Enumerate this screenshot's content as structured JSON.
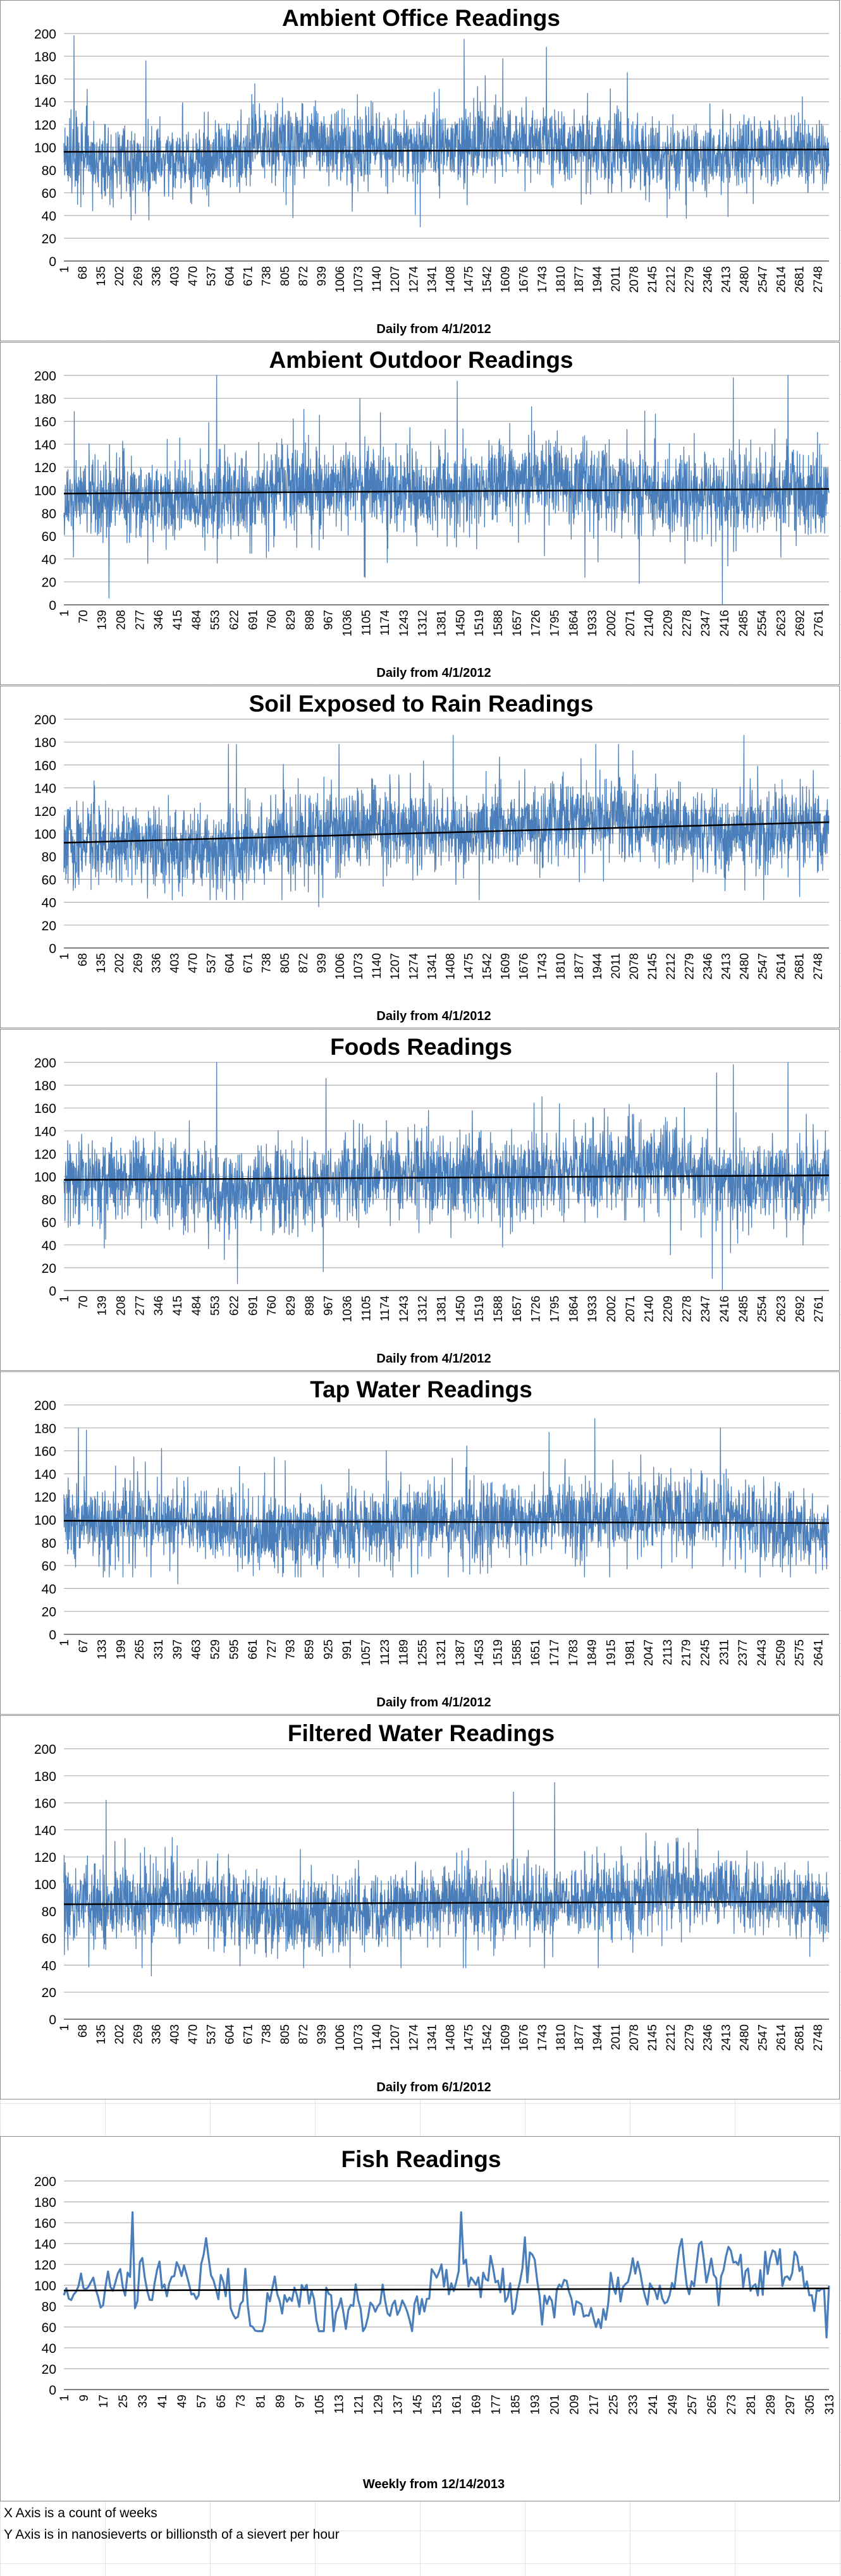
{
  "colors": {
    "series": "#4a7ebb",
    "trend": "#000000",
    "grid": "#b0b0b0",
    "axis": "#808080"
  },
  "chart_data": [
    {
      "type": "line",
      "title": "Ambient Office Readings",
      "xlabel": "Daily from 4/1/2012",
      "ylabel": "",
      "ylim": [
        0,
        200
      ],
      "yticks": [
        0,
        20,
        40,
        60,
        80,
        100,
        120,
        140,
        160,
        180,
        200
      ],
      "x_tick_labels": [
        "1",
        "68",
        "135",
        "202",
        "269",
        "336",
        "403",
        "470",
        "537",
        "604",
        "671",
        "738",
        "805",
        "872",
        "939",
        "1006",
        "1073",
        "1140",
        "1207",
        "1274",
        "1341",
        "1408",
        "1475",
        "1542",
        "1609",
        "1676",
        "1743",
        "1810",
        "1877",
        "1944",
        "2011",
        "2078",
        "2145",
        "2212",
        "2279",
        "2346",
        "2413",
        "2480",
        "2547",
        "2614",
        "2681",
        "2748"
      ],
      "n_points": 2790,
      "grid": true,
      "legend": "none",
      "series_summary": {
        "mean": 97,
        "stdev": 19,
        "min": 30,
        "max": 198
      },
      "trendline": [
        96,
        98
      ],
      "notable_peaks": [
        {
          "x": 38,
          "y": 198
        },
        {
          "x": 1460,
          "y": 195
        },
        {
          "x": 1760,
          "y": 188
        },
        {
          "x": 300,
          "y": 176
        },
        {
          "x": 1300,
          "y": 30
        }
      ]
    },
    {
      "type": "line",
      "title": "Ambient Outdoor Readings",
      "xlabel": "Daily from 4/1/2012",
      "ylabel": "",
      "ylim": [
        0,
        200
      ],
      "yticks": [
        0,
        20,
        40,
        60,
        80,
        100,
        120,
        140,
        160,
        180,
        200
      ],
      "x_tick_labels": [
        "1",
        "70",
        "139",
        "208",
        "277",
        "346",
        "415",
        "484",
        "553",
        "622",
        "691",
        "760",
        "829",
        "898",
        "967",
        "1036",
        "1105",
        "1174",
        "1243",
        "1312",
        "1381",
        "1450",
        "1519",
        "1588",
        "1657",
        "1726",
        "1795",
        "1864",
        "1933",
        "2002",
        "2071",
        "2140",
        "2209",
        "2278",
        "2347",
        "2416",
        "2485",
        "2554",
        "2623",
        "2692",
        "2761"
      ],
      "n_points": 2800,
      "grid": true,
      "legend": "none",
      "series_summary": {
        "mean": 99,
        "stdev": 22,
        "min": 0,
        "max": 200
      },
      "trendline": [
        97,
        101
      ],
      "notable_peaks": [
        {
          "x": 560,
          "y": 200
        },
        {
          "x": 2450,
          "y": 198
        },
        {
          "x": 2650,
          "y": 200
        },
        {
          "x": 1440,
          "y": 195
        },
        {
          "x": 2410,
          "y": 0
        }
      ]
    },
    {
      "type": "line",
      "title": "Soil Exposed to Rain Readings",
      "xlabel": "Daily from 4/1/2012",
      "ylabel": "",
      "ylim": [
        0,
        200
      ],
      "yticks": [
        0,
        20,
        40,
        60,
        80,
        100,
        120,
        140,
        160,
        180,
        200
      ],
      "x_tick_labels": [
        "1",
        "68",
        "135",
        "202",
        "269",
        "336",
        "403",
        "470",
        "537",
        "604",
        "671",
        "738",
        "805",
        "872",
        "939",
        "1006",
        "1073",
        "1140",
        "1207",
        "1274",
        "1341",
        "1408",
        "1475",
        "1542",
        "1609",
        "1676",
        "1743",
        "1810",
        "1877",
        "1944",
        "2011",
        "2078",
        "2145",
        "2212",
        "2279",
        "2346",
        "2413",
        "2480",
        "2547",
        "2614",
        "2681",
        "2748"
      ],
      "n_points": 2790,
      "grid": true,
      "legend": "none",
      "series_summary": {
        "mean": 101,
        "stdev": 21,
        "min": 36,
        "max": 186
      },
      "trendline": [
        92,
        110
      ],
      "notable_peaks": [
        {
          "x": 1420,
          "y": 186
        },
        {
          "x": 2480,
          "y": 186
        },
        {
          "x": 630,
          "y": 178
        },
        {
          "x": 930,
          "y": 36
        }
      ]
    },
    {
      "type": "line",
      "title": "Foods Readings",
      "xlabel": "Daily from 4/1/2012",
      "ylabel": "",
      "ylim": [
        0,
        200
      ],
      "yticks": [
        0,
        20,
        40,
        60,
        80,
        100,
        120,
        140,
        160,
        180,
        200
      ],
      "x_tick_labels": [
        "1",
        "70",
        "139",
        "208",
        "277",
        "346",
        "415",
        "484",
        "553",
        "622",
        "691",
        "760",
        "829",
        "898",
        "967",
        "1036",
        "1105",
        "1174",
        "1243",
        "1312",
        "1381",
        "1450",
        "1519",
        "1588",
        "1657",
        "1726",
        "1795",
        "1864",
        "1933",
        "2002",
        "2071",
        "2140",
        "2209",
        "2278",
        "2347",
        "2416",
        "2485",
        "2554",
        "2623",
        "2692",
        "2761"
      ],
      "n_points": 2800,
      "grid": true,
      "legend": "none",
      "series_summary": {
        "mean": 99,
        "stdev": 22,
        "min": 0,
        "max": 200
      },
      "trendline": [
        97,
        101
      ],
      "notable_peaks": [
        {
          "x": 560,
          "y": 200
        },
        {
          "x": 2450,
          "y": 198
        },
        {
          "x": 2650,
          "y": 200
        },
        {
          "x": 960,
          "y": 186
        },
        {
          "x": 2410,
          "y": 0
        }
      ]
    },
    {
      "type": "line",
      "title": "Tap Water Readings",
      "xlabel": "Daily from 4/1/2012",
      "ylabel": "",
      "ylim": [
        0,
        200
      ],
      "yticks": [
        0,
        20,
        40,
        60,
        80,
        100,
        120,
        140,
        160,
        180,
        200
      ],
      "x_tick_labels": [
        "1",
        "67",
        "133",
        "199",
        "265",
        "331",
        "397",
        "463",
        "529",
        "595",
        "661",
        "727",
        "793",
        "859",
        "925",
        "991",
        "1057",
        "1123",
        "1189",
        "1255",
        "1321",
        "1387",
        "1453",
        "1519",
        "1585",
        "1651",
        "1717",
        "1783",
        "1849",
        "1915",
        "1981",
        "2047",
        "2113",
        "2179",
        "2245",
        "2311",
        "2377",
        "2443",
        "2509",
        "2575",
        "2641"
      ],
      "n_points": 2680,
      "grid": true,
      "legend": "none",
      "series_summary": {
        "mean": 98,
        "stdev": 20,
        "min": 44,
        "max": 188
      },
      "trendline": [
        99,
        97
      ],
      "notable_peaks": [
        {
          "x": 1860,
          "y": 188
        },
        {
          "x": 80,
          "y": 178
        },
        {
          "x": 1700,
          "y": 176
        },
        {
          "x": 400,
          "y": 44
        }
      ]
    },
    {
      "type": "line",
      "title": "Filtered Water Readings",
      "xlabel": "Daily from 6/1/2012",
      "ylabel": "",
      "ylim": [
        0,
        200
      ],
      "yticks": [
        0,
        20,
        40,
        60,
        80,
        100,
        120,
        140,
        160,
        180,
        200
      ],
      "x_tick_labels": [
        "1",
        "68",
        "135",
        "202",
        "269",
        "336",
        "403",
        "470",
        "537",
        "604",
        "671",
        "738",
        "805",
        "872",
        "939",
        "1006",
        "1073",
        "1140",
        "1207",
        "1274",
        "1341",
        "1408",
        "1475",
        "1542",
        "1609",
        "1676",
        "1743",
        "1810",
        "1877",
        "1944",
        "2011",
        "2078",
        "2145",
        "2212",
        "2279",
        "2346",
        "2413",
        "2480",
        "2547",
        "2614",
        "2681",
        "2748"
      ],
      "n_points": 2790,
      "grid": true,
      "legend": "none",
      "series_summary": {
        "mean": 86,
        "stdev": 17,
        "min": 32,
        "max": 175
      },
      "trendline": [
        85,
        87
      ],
      "notable_peaks": [
        {
          "x": 1790,
          "y": 175
        },
        {
          "x": 155,
          "y": 162
        },
        {
          "x": 1640,
          "y": 168
        },
        {
          "x": 320,
          "y": 32
        }
      ]
    },
    {
      "type": "line",
      "title": "Fish Readings",
      "xlabel": "Weekly from 12/14/2013",
      "ylabel": "",
      "ylim": [
        0,
        200
      ],
      "yticks": [
        0,
        20,
        40,
        60,
        80,
        100,
        120,
        140,
        160,
        180,
        200
      ],
      "x_tick_labels": [
        "1",
        "9",
        "17",
        "25",
        "33",
        "41",
        "49",
        "57",
        "65",
        "73",
        "81",
        "89",
        "97",
        "105",
        "113",
        "121",
        "129",
        "137",
        "145",
        "153",
        "161",
        "169",
        "177",
        "185",
        "193",
        "201",
        "209",
        "217",
        "225",
        "233",
        "241",
        "249",
        "257",
        "265",
        "273",
        "281",
        "289",
        "297",
        "305",
        "313"
      ],
      "n_points": 313,
      "grid": true,
      "legend": "none",
      "series_summary": {
        "mean": 95,
        "stdev": 17,
        "min": 50,
        "max": 170
      },
      "trendline": [
        95,
        97
      ],
      "notable_peaks": [
        {
          "x": 29,
          "y": 170
        },
        {
          "x": 163,
          "y": 170
        },
        {
          "x": 189,
          "y": 146
        },
        {
          "x": 312,
          "y": 50
        }
      ]
    }
  ],
  "footnotes": [
    "X Axis is a count of weeks",
    "Y Axis is in nanosieverts or billionsth of a sievert per hour"
  ]
}
